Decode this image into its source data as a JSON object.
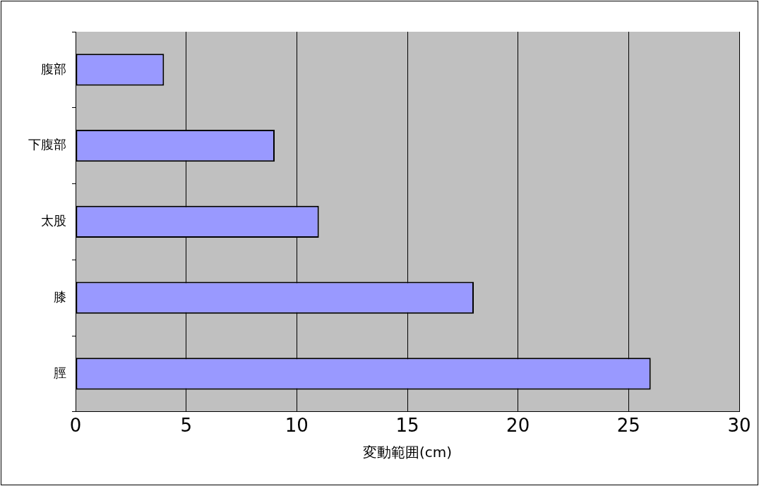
{
  "chart_data": {
    "type": "bar",
    "orientation": "horizontal",
    "xlabel": "変動範囲(cm)",
    "categories": [
      "腹部",
      "下腹部",
      "太股",
      "膝",
      "脛"
    ],
    "values": [
      4,
      9,
      11,
      18,
      26
    ],
    "color": "#9999ff",
    "xlim": [
      0,
      30
    ],
    "xticks": [
      0,
      5,
      10,
      15,
      20,
      25,
      30
    ],
    "grid": "x",
    "legend": false
  }
}
